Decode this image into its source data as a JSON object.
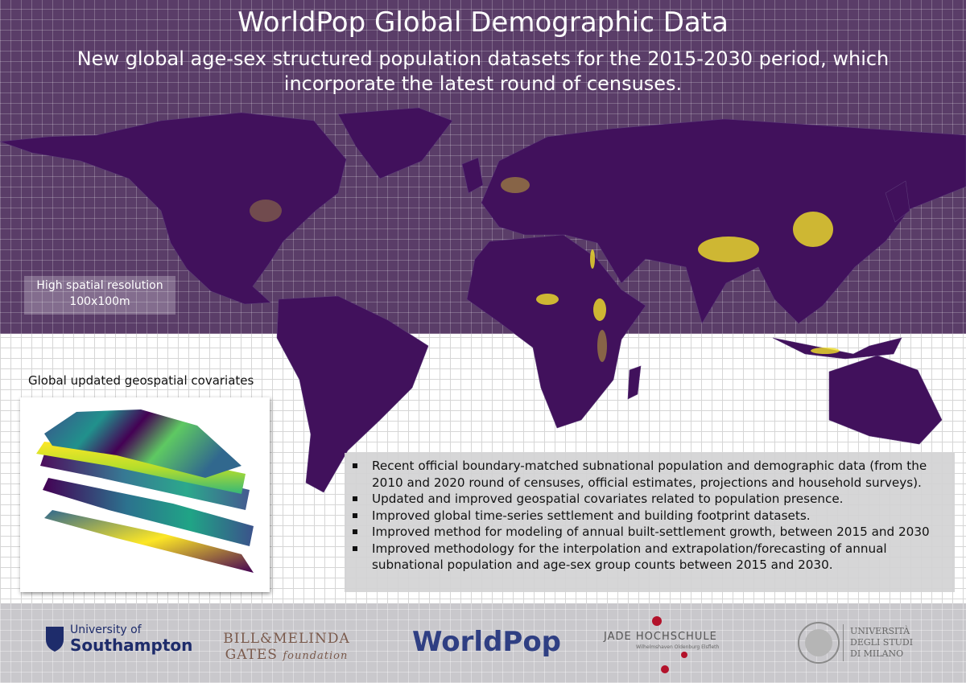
{
  "header": {
    "title": "WorldPop Global Demographic Data",
    "subtitle": "New global age-sex structured population datasets for the 2015-2030 period, which incorporate the latest round of censuses."
  },
  "map_label": {
    "lines": [
      "High spatial resolution",
      "100x100m"
    ]
  },
  "covariates": {
    "title": "Global updated geospatial covariates"
  },
  "bullets": [
    "Recent official boundary-matched subnational population and demographic data (from the 2010 and 2020 round of censuses, official estimates, projections and household surveys).",
    "Updated and improved geospatial covariates related to population presence.",
    "Improved global time-series settlement and building footprint datasets.",
    "Improved method for modeling of annual built-settlement growth, between 2015 and 2030",
    "Improved methodology for the interpolation and extrapolation/forecasting of annual subnational population and age-sex group counts between 2015 and 2030."
  ],
  "footer": {
    "logos": [
      {
        "lines": [
          "University of",
          "Southampton"
        ]
      },
      {
        "lines": [
          "BILL&MELINDA",
          "GATES",
          "foundation"
        ]
      },
      {
        "lines": [
          "WorldPop"
        ]
      },
      {
        "lines": [
          "JADE HOCHSCHULE",
          "Wilhelmshaven Oldenburg Elsfleth"
        ]
      },
      {
        "lines": [
          "UNIVERSITÀ",
          "DEGLI STUDI",
          "DI MILANO"
        ]
      }
    ]
  }
}
